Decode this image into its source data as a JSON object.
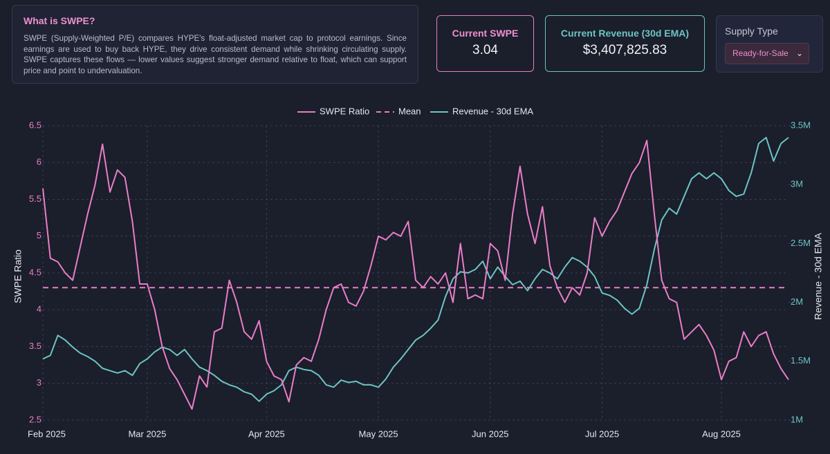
{
  "info": {
    "title": "What is SWPE?",
    "text": "SWPE (Supply-Weighted P/E) compares HYPE's float-adjusted market cap to protocol earnings. Since earnings are used to buy back HYPE, they drive consistent demand while shrinking circulating supply. SWPE captures these flows — lower values suggest stronger demand relative to float, which can support price and point to undervaluation."
  },
  "cards": [
    {
      "label": "Current SWPE",
      "value": "3.04"
    },
    {
      "label": "Current Revenue (30d EMA)",
      "value": "$3,407,825.83"
    }
  ],
  "supply": {
    "label": "Supply Type",
    "selected": "Ready-for-Sale"
  },
  "chart_data": {
    "type": "line",
    "categories": [
      "Feb 2025",
      null,
      null,
      null,
      null,
      null,
      null,
      null,
      null,
      null,
      null,
      null,
      null,
      null,
      "Mar 2025",
      null,
      null,
      null,
      null,
      null,
      null,
      null,
      null,
      null,
      null,
      null,
      null,
      null,
      null,
      null,
      "Apr 2025",
      null,
      null,
      null,
      null,
      null,
      null,
      null,
      null,
      null,
      null,
      null,
      null,
      null,
      null,
      "May 2025",
      null,
      null,
      null,
      null,
      null,
      null,
      null,
      null,
      null,
      null,
      null,
      null,
      null,
      null,
      "Jun 2025",
      null,
      null,
      null,
      null,
      null,
      null,
      null,
      null,
      null,
      null,
      null,
      null,
      null,
      null,
      "Jul 2025",
      null,
      null,
      null,
      null,
      null,
      null,
      null,
      null,
      null,
      null,
      null,
      null,
      null,
      null,
      null,
      "Aug 2025",
      null,
      null,
      null,
      null,
      null,
      null,
      null,
      null,
      null
    ],
    "series": [
      {
        "name": "SWPE Ratio",
        "color": "#e97fc9",
        "axis": "y",
        "values": [
          5.65,
          4.7,
          4.65,
          4.5,
          4.4,
          4.85,
          5.3,
          5.7,
          6.25,
          5.6,
          5.9,
          5.8,
          5.2,
          4.35,
          4.35,
          4.0,
          3.5,
          3.2,
          3.05,
          2.85,
          2.65,
          3.1,
          2.95,
          3.7,
          3.75,
          4.4,
          4.1,
          3.7,
          3.6,
          3.85,
          3.3,
          3.1,
          3.05,
          2.75,
          3.25,
          3.35,
          3.3,
          3.6,
          4.0,
          4.3,
          4.35,
          4.1,
          4.05,
          4.25,
          4.6,
          5.0,
          4.95,
          5.05,
          5.0,
          5.2,
          4.4,
          4.3,
          4.45,
          4.35,
          4.5,
          4.1,
          4.9,
          4.15,
          4.2,
          4.15,
          4.9,
          4.8,
          4.4,
          5.3,
          5.95,
          5.3,
          4.9,
          5.4,
          4.6,
          4.3,
          4.1,
          4.3,
          4.2,
          4.5,
          5.25,
          5.0,
          5.2,
          5.35,
          5.6,
          5.85,
          6.0,
          6.3,
          5.3,
          4.4,
          4.15,
          4.1,
          3.6,
          3.7,
          3.8,
          3.65,
          3.45,
          3.05,
          3.3,
          3.35,
          3.7,
          3.5,
          3.65,
          3.7,
          3.4,
          3.2,
          3.05
        ]
      },
      {
        "name": "Revenue - 30d EMA",
        "color": "#6cc5c5",
        "axis": "y2",
        "values": [
          1520000,
          1550000,
          1720000,
          1680000,
          1620000,
          1570000,
          1540000,
          1500000,
          1440000,
          1420000,
          1400000,
          1420000,
          1380000,
          1480000,
          1520000,
          1580000,
          1620000,
          1600000,
          1550000,
          1600000,
          1520000,
          1450000,
          1420000,
          1380000,
          1330000,
          1300000,
          1280000,
          1240000,
          1220000,
          1160000,
          1220000,
          1250000,
          1300000,
          1420000,
          1450000,
          1430000,
          1420000,
          1380000,
          1300000,
          1280000,
          1340000,
          1320000,
          1330000,
          1300000,
          1300000,
          1280000,
          1350000,
          1450000,
          1520000,
          1600000,
          1680000,
          1720000,
          1780000,
          1850000,
          2050000,
          2200000,
          2260000,
          2250000,
          2280000,
          2350000,
          2200000,
          2300000,
          2220000,
          2150000,
          2180000,
          2100000,
          2200000,
          2280000,
          2250000,
          2200000,
          2300000,
          2380000,
          2350000,
          2300000,
          2220000,
          2080000,
          2060000,
          2020000,
          1950000,
          1900000,
          1950000,
          2150000,
          2450000,
          2700000,
          2800000,
          2750000,
          2900000,
          3050000,
          3100000,
          3050000,
          3100000,
          3050000,
          2950000,
          2900000,
          2920000,
          3100000,
          3350000,
          3400000,
          3200000,
          3350000,
          3400000
        ]
      }
    ],
    "mean": {
      "name": "Mean",
      "value": 4.3,
      "color": "#e97fc9"
    },
    "ylabel": "SWPE Ratio",
    "y2label": "Revenue - 30d EMA",
    "ylim": [
      2.5,
      6.5
    ],
    "yticks": [
      2.5,
      3,
      3.5,
      4,
      4.5,
      5,
      5.5,
      6,
      6.5
    ],
    "y2lim": [
      1000000,
      3500000
    ],
    "y2ticks": [
      {
        "value": 1000000,
        "label": "1M"
      },
      {
        "value": 1500000,
        "label": "1.5M"
      },
      {
        "value": 2000000,
        "label": "2M"
      },
      {
        "value": 2500000,
        "label": "2.5M"
      },
      {
        "value": 3000000,
        "label": "3M"
      },
      {
        "value": 3500000,
        "label": "3.5M"
      }
    ],
    "grid": true
  }
}
